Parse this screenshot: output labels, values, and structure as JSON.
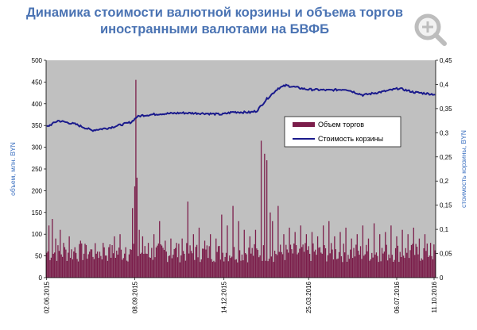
{
  "title_line1": "Динамика стоимости валютной корзины и объема торгов",
  "title_line2": "иностранными валютами на БВФБ",
  "zoom_icon": "magnifier-plus-icon",
  "colors": {
    "title": "#4a73b3",
    "plot_bg": "#c0c0c0",
    "bars": "#7b1d4a",
    "line": "#1a1a8c",
    "axis_label": "#3a6fc0"
  },
  "chart_data": {
    "type": "bar+line",
    "xlabel": "",
    "ylabel_left": "объем, млн. BYN",
    "ylabel_right": "стоимость корзины, BYN",
    "ylim_left": [
      0,
      500
    ],
    "ylim_right": [
      0,
      0.45
    ],
    "yticks_left": [
      "0",
      "50",
      "100",
      "150",
      "200",
      "250",
      "300",
      "350",
      "400",
      "450",
      "500"
    ],
    "yticks_right": [
      "0",
      "0,05",
      "0,1",
      "0,15",
      "0,2",
      "0,25",
      "0,3",
      "0,35",
      "0,4",
      "0,45"
    ],
    "x_tick_labels": [
      "02.06.2015",
      "08.09.2015",
      "14.12.2015",
      "25.03.2016",
      "06.07.2016",
      "11.10.2016"
    ],
    "legend_position": "right",
    "series": [
      {
        "name": "Объем торгов",
        "type": "bar"
      },
      {
        "name": "Стоимость корзины",
        "type": "line"
      }
    ],
    "n_days": 345,
    "line_knots": [
      [
        0,
        0.312
      ],
      [
        10,
        0.325
      ],
      [
        25,
        0.318
      ],
      [
        40,
        0.305
      ],
      [
        55,
        0.31
      ],
      [
        75,
        0.322
      ],
      [
        80,
        0.333
      ],
      [
        85,
        0.336
      ],
      [
        100,
        0.339
      ],
      [
        120,
        0.341
      ],
      [
        140,
        0.34
      ],
      [
        155,
        0.338
      ],
      [
        165,
        0.343
      ],
      [
        180,
        0.342
      ],
      [
        186,
        0.345
      ],
      [
        195,
        0.37
      ],
      [
        205,
        0.392
      ],
      [
        212,
        0.398
      ],
      [
        230,
        0.39
      ],
      [
        250,
        0.388
      ],
      [
        265,
        0.39
      ],
      [
        280,
        0.378
      ],
      [
        300,
        0.386
      ],
      [
        312,
        0.392
      ],
      [
        325,
        0.384
      ],
      [
        345,
        0.379
      ]
    ],
    "bar_spikes": [
      [
        2,
        120
      ],
      [
        5,
        135
      ],
      [
        8,
        90
      ],
      [
        12,
        110
      ],
      [
        15,
        80
      ],
      [
        20,
        95
      ],
      [
        25,
        70
      ],
      [
        30,
        85
      ],
      [
        35,
        75
      ],
      [
        40,
        65
      ],
      [
        45,
        60
      ],
      [
        50,
        80
      ],
      [
        55,
        70
      ],
      [
        60,
        95
      ],
      [
        65,
        100
      ],
      [
        70,
        70
      ],
      [
        76,
        160
      ],
      [
        78,
        210
      ],
      [
        79,
        455
      ],
      [
        80,
        230
      ],
      [
        82,
        110
      ],
      [
        85,
        95
      ],
      [
        90,
        80
      ],
      [
        95,
        100
      ],
      [
        100,
        130
      ],
      [
        105,
        85
      ],
      [
        110,
        90
      ],
      [
        115,
        80
      ],
      [
        120,
        90
      ],
      [
        125,
        175
      ],
      [
        130,
        100
      ],
      [
        135,
        115
      ],
      [
        140,
        85
      ],
      [
        145,
        100
      ],
      [
        150,
        90
      ],
      [
        155,
        145
      ],
      [
        160,
        120
      ],
      [
        165,
        165
      ],
      [
        170,
        130
      ],
      [
        175,
        110
      ],
      [
        180,
        95
      ],
      [
        185,
        110
      ],
      [
        190,
        315
      ],
      [
        193,
        285
      ],
      [
        195,
        270
      ],
      [
        198,
        150
      ],
      [
        200,
        130
      ],
      [
        205,
        165
      ],
      [
        210,
        100
      ],
      [
        215,
        115
      ],
      [
        220,
        105
      ],
      [
        225,
        120
      ],
      [
        230,
        100
      ],
      [
        235,
        105
      ],
      [
        240,
        95
      ],
      [
        245,
        120
      ],
      [
        250,
        130
      ],
      [
        255,
        95
      ],
      [
        260,
        105
      ],
      [
        265,
        115
      ],
      [
        270,
        90
      ],
      [
        275,
        100
      ],
      [
        280,
        120
      ],
      [
        285,
        90
      ],
      [
        290,
        125
      ],
      [
        295,
        100
      ],
      [
        300,
        105
      ],
      [
        305,
        120
      ],
      [
        310,
        95
      ],
      [
        315,
        110
      ],
      [
        320,
        100
      ],
      [
        325,
        115
      ],
      [
        330,
        90
      ],
      [
        335,
        100
      ],
      [
        340,
        80
      ],
      [
        345,
        90
      ]
    ]
  }
}
